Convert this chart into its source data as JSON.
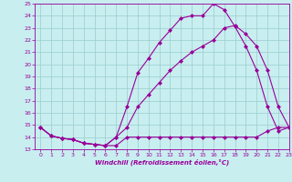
{
  "line1_x": [
    0,
    1,
    2,
    3,
    4,
    5,
    6,
    7,
    8,
    9,
    10,
    11,
    12,
    13,
    14,
    15,
    16,
    17,
    18,
    19,
    20,
    21,
    22,
    23
  ],
  "line1_y": [
    14.8,
    14.1,
    13.9,
    13.8,
    13.5,
    13.4,
    13.3,
    14.0,
    16.5,
    19.3,
    20.5,
    21.8,
    22.8,
    23.8,
    24.0,
    24.0,
    25.0,
    24.5,
    23.1,
    21.5,
    19.5,
    16.5,
    14.5,
    14.8
  ],
  "line2_x": [
    0,
    1,
    2,
    3,
    4,
    5,
    6,
    7,
    8,
    9,
    10,
    11,
    12,
    13,
    14,
    15,
    16,
    17,
    18,
    19,
    20,
    21,
    22,
    23
  ],
  "line2_y": [
    14.8,
    14.1,
    13.9,
    13.8,
    13.5,
    13.4,
    13.3,
    14.0,
    14.8,
    16.5,
    17.5,
    18.5,
    19.5,
    20.3,
    21.0,
    21.5,
    22.0,
    23.0,
    23.2,
    22.5,
    21.5,
    19.5,
    16.5,
    14.8
  ],
  "line3_x": [
    0,
    1,
    2,
    3,
    4,
    5,
    6,
    7,
    8,
    9,
    10,
    11,
    12,
    13,
    14,
    15,
    16,
    17,
    18,
    19,
    20,
    21,
    22,
    23
  ],
  "line3_y": [
    14.8,
    14.1,
    13.9,
    13.8,
    13.5,
    13.4,
    13.3,
    13.3,
    14.0,
    14.0,
    14.0,
    14.0,
    14.0,
    14.0,
    14.0,
    14.0,
    14.0,
    14.0,
    14.0,
    14.0,
    14.0,
    14.5,
    14.8,
    14.8
  ],
  "line_color": "#990099",
  "bg_color": "#c8eef0",
  "grid_color": "#99cccc",
  "xlim": [
    -0.5,
    23
  ],
  "ylim": [
    13,
    25
  ],
  "yticks": [
    13,
    14,
    15,
    16,
    17,
    18,
    19,
    20,
    21,
    22,
    23,
    24,
    25
  ],
  "xticks": [
    0,
    1,
    2,
    3,
    4,
    5,
    6,
    7,
    8,
    9,
    10,
    11,
    12,
    13,
    14,
    15,
    16,
    17,
    18,
    19,
    20,
    21,
    22,
    23
  ],
  "xlabel": "Windchill (Refroidissement éolien,°C)",
  "marker": "D",
  "marker_size": 2,
  "linewidth": 0.8
}
